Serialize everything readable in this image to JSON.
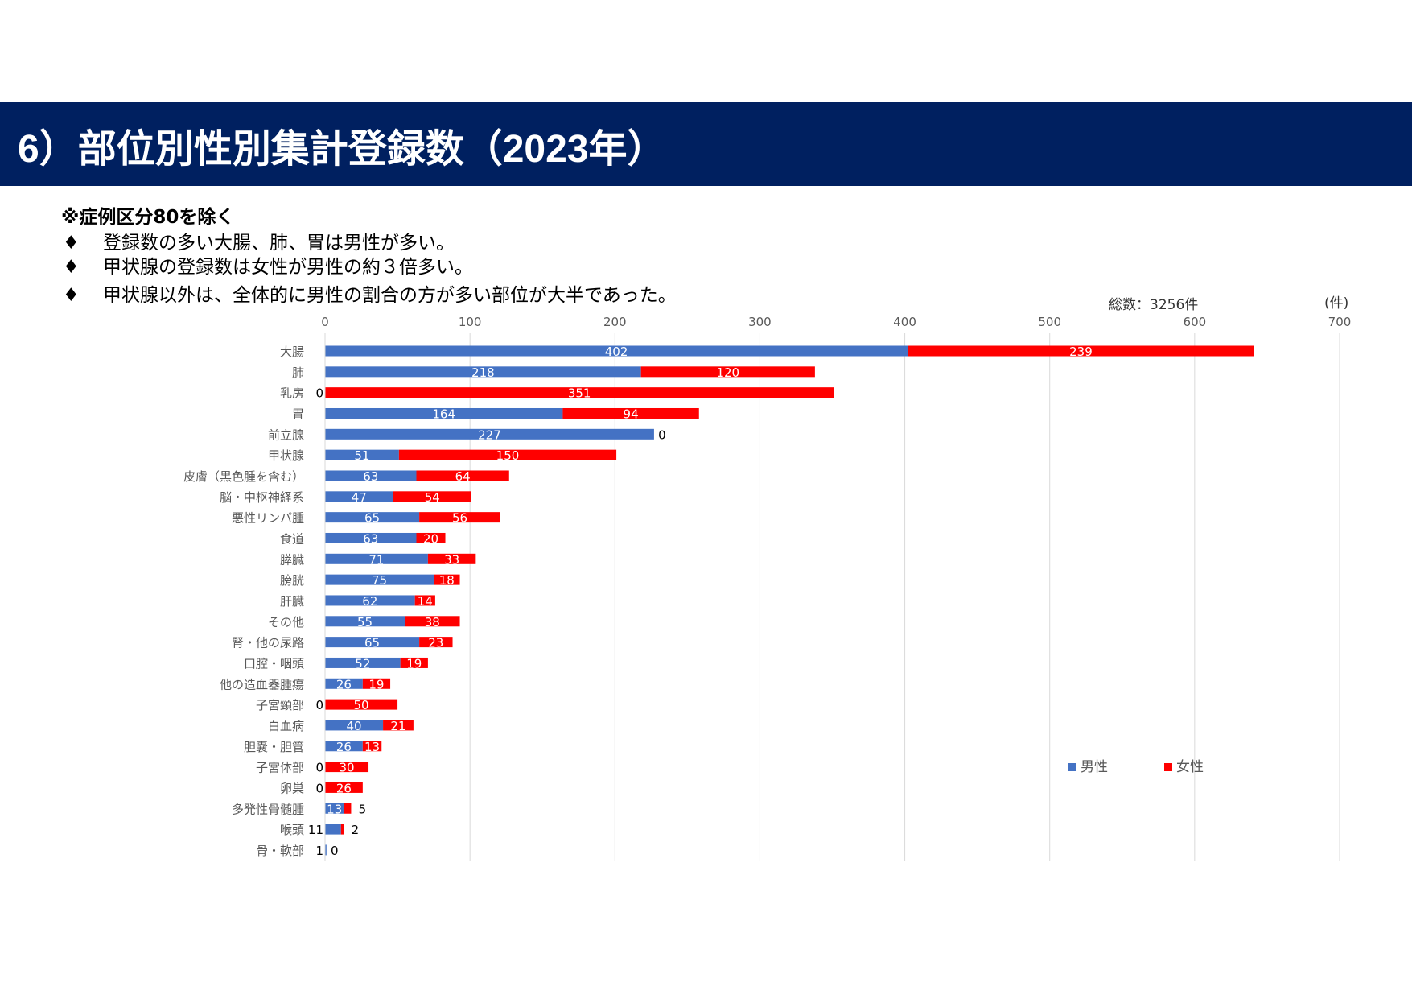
{
  "header": {
    "title": "6）部位別性別集計登録数（2023年）"
  },
  "note": "※症例区分80を除く",
  "bullets": [
    {
      "icon": "diamond",
      "text": "登録数の多い大腸、肺、胃は男性が多い。"
    },
    {
      "icon": "diamond",
      "text": "甲状腺の登録数は女性が男性の約３倍多い。"
    },
    {
      "icon": "diamond",
      "text": "甲状腺以外は、全体的に男性の割合の方が多い部位が大半であった。"
    }
  ],
  "total_label": "総数：3256件",
  "unit_label": "(件)",
  "bullet_glyph": "♦",
  "chart_data": {
    "type": "bar",
    "orientation": "horizontal",
    "stacked": true,
    "xlim": [
      0,
      700
    ],
    "xticks": [
      0,
      100,
      200,
      300,
      400,
      500,
      600,
      700
    ],
    "grid": true,
    "legend_position": "right",
    "categories": [
      "大腸",
      "肺",
      "乳房",
      "胃",
      "前立腺",
      "甲状腺",
      "皮膚（黒色腫を含む）",
      "脳・中枢神経系",
      "悪性リンパ腫",
      "食道",
      "膵臓",
      "膀胱",
      "肝臓",
      "その他",
      "腎・他の尿路",
      "口腔・咽頭",
      "他の造血器腫瘍",
      "子宮頸部",
      "白血病",
      "胆嚢・胆管",
      "子宮体部",
      "卵巣",
      "多発性骨髄腫",
      "喉頭",
      "骨・軟部"
    ],
    "series": [
      {
        "name": "男性",
        "color": "#4472C4",
        "values": [
          402,
          218,
          0,
          164,
          227,
          51,
          63,
          47,
          65,
          63,
          71,
          75,
          62,
          55,
          65,
          52,
          26,
          0,
          40,
          26,
          0,
          0,
          13,
          11,
          1
        ]
      },
      {
        "name": "女性",
        "color": "#FF0000",
        "values": [
          239,
          120,
          351,
          94,
          0,
          150,
          64,
          54,
          56,
          20,
          33,
          18,
          14,
          38,
          23,
          19,
          19,
          50,
          21,
          13,
          30,
          26,
          5,
          2,
          0
        ]
      }
    ]
  }
}
